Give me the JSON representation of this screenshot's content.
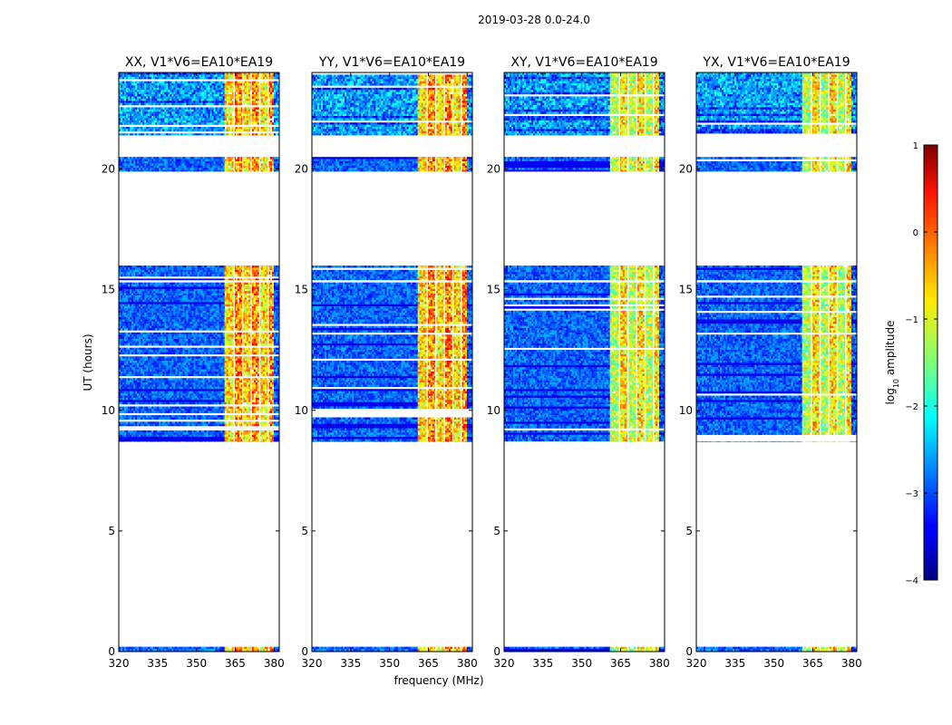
{
  "chart_data": {
    "type": "heatmap",
    "title": "2019-03-28 0.0-24.0",
    "xlabel": "frequency (MHz)",
    "ylabel": "UT (hours)",
    "xlim": [
      320,
      382
    ],
    "ylim": [
      0,
      24
    ],
    "x_ticks": [
      320,
      335,
      350,
      365,
      380
    ],
    "x_tick_labels": [
      "320",
      "335",
      "350",
      "365",
      "380"
    ],
    "y_ticks": [
      0,
      5,
      10,
      15,
      20
    ],
    "y_tick_labels": [
      "0",
      "5",
      "10",
      "15",
      "20"
    ],
    "panels": [
      {
        "title": "XX, V1*V6=EA10*EA19",
        "polarization": "XX"
      },
      {
        "title": "YY, V1*V6=EA10*EA19",
        "polarization": "YY"
      },
      {
        "title": "XY, V1*V6=EA10*EA19",
        "polarization": "XY"
      },
      {
        "title": "YX, V1*V6=EA10*EA19",
        "polarization": "YX"
      }
    ],
    "data_time_ranges_hours": [
      [
        0.0,
        0.2
      ],
      [
        8.7,
        10.7
      ],
      [
        10.7,
        15.3
      ],
      [
        15.4,
        16.0
      ],
      [
        19.9,
        20.5
      ],
      [
        21.4,
        24.0
      ]
    ],
    "bright_band_mhz": [
      361,
      380
    ],
    "colorbar": {
      "label": "log10 amplitude",
      "label_prefix": "log",
      "label_sub": "10",
      "label_suffix": " amplitude",
      "min": -4,
      "max": 1,
      "ticks": [
        1,
        0,
        -1,
        -2,
        -3,
        -4
      ],
      "tick_labels": [
        "1",
        "0",
        "−1",
        "−2",
        "−3",
        "−4"
      ],
      "colormap": "jet"
    }
  }
}
